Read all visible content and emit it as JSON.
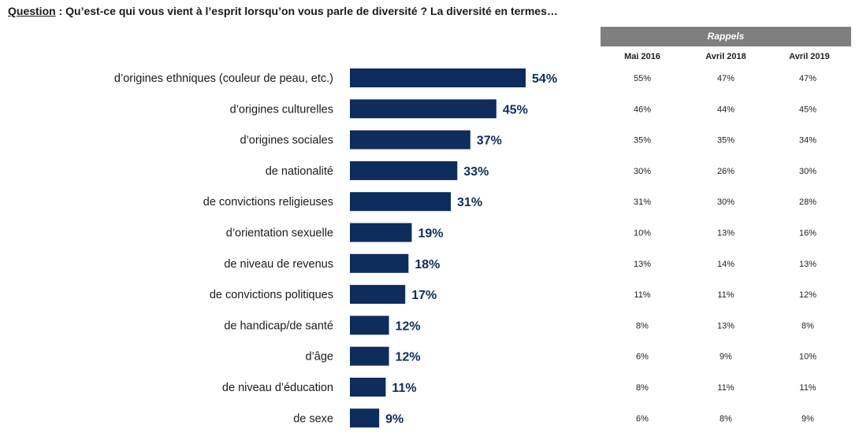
{
  "question": {
    "label": "Question",
    "separator": " : ",
    "text": "Qu’est-ce qui vous vient à l’esprit lorsqu’on vous parle de diversité ? La diversité en termes…"
  },
  "rappels": {
    "title": "Rappels",
    "columns": [
      "Mai 2016",
      "Avril 2018",
      "Avril 2019"
    ]
  },
  "colors": {
    "bar": "#0e2d5c",
    "value_text": "#0e2d5c",
    "header_bg": "#7f7f7f"
  },
  "chart_data": {
    "type": "bar",
    "orientation": "horizontal",
    "categories": [
      "d’origines ethniques (couleur de peau, etc.)",
      "d’origines culturelles",
      "d’origines sociales",
      "de nationalité",
      "de convictions religieuses",
      "d’orientation sexuelle",
      "de niveau de revenus",
      "de convictions politiques",
      "de handicap/de santé",
      "d’âge",
      "de niveau d’éducation",
      "de sexe"
    ],
    "values": [
      54,
      45,
      37,
      33,
      31,
      19,
      18,
      17,
      12,
      12,
      11,
      9
    ],
    "value_labels": [
      "54%",
      "45%",
      "37%",
      "33%",
      "31%",
      "19%",
      "18%",
      "17%",
      "12%",
      "12%",
      "11%",
      "9%"
    ],
    "unit": "%",
    "xlim": [
      0,
      100
    ],
    "grid": false,
    "rappels_table": {
      "columns": [
        "Mai 2016",
        "Avril 2018",
        "Avril 2019"
      ],
      "rows": [
        [
          "55%",
          "47%",
          "47%"
        ],
        [
          "46%",
          "44%",
          "45%"
        ],
        [
          "35%",
          "35%",
          "34%"
        ],
        [
          "30%",
          "26%",
          "30%"
        ],
        [
          "31%",
          "30%",
          "28%"
        ],
        [
          "10%",
          "13%",
          "16%"
        ],
        [
          "13%",
          "14%",
          "13%"
        ],
        [
          "11%",
          "11%",
          "12%"
        ],
        [
          "8%",
          "13%",
          "8%"
        ],
        [
          "6%",
          "9%",
          "10%"
        ],
        [
          "8%",
          "11%",
          "11%"
        ],
        [
          "6%",
          "8%",
          "9%"
        ]
      ]
    }
  }
}
